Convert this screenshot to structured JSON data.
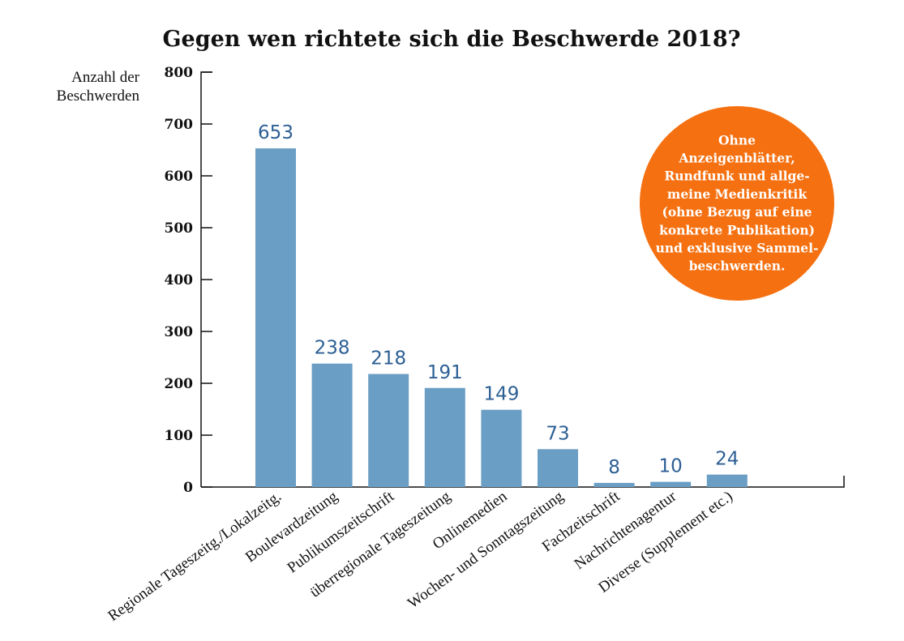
{
  "chart_data": {
    "type": "bar",
    "title": "Gegen wen richtete sich die Beschwerde 2018?",
    "ylabel_lines": [
      "Anzahl der",
      "Beschwerden"
    ],
    "xlabel": "",
    "ylim": [
      0,
      800
    ],
    "yticks": [
      0,
      100,
      200,
      300,
      400,
      500,
      600,
      700,
      800
    ],
    "categories": [
      "Regionale Tageszeitg./Lokalzeitg.",
      "Boulevardzeitung",
      "Publikumszeitschrift",
      "überregionale Tageszeitung",
      "Onlinemedien",
      "Wochen- und Sonntagszeitung",
      "Fachzeitschrift",
      "Nachrichtenagentur",
      "Diverse (Supplement etc.)"
    ],
    "values": [
      653,
      238,
      218,
      191,
      149,
      73,
      8,
      10,
      24
    ],
    "grid": false,
    "bar_color": "#6a9ec5",
    "label_color": "#2d5f94",
    "annotation": {
      "lines": [
        "Ohne",
        "Anzeigenblätter,",
        "Rundfunk und allge-",
        "meine Medienkritik",
        "(ohne Bezug auf eine",
        "konkrete Publikation)",
        "und exklusive Sammel-",
        "beschwerden."
      ],
      "color": "#f57010"
    }
  }
}
